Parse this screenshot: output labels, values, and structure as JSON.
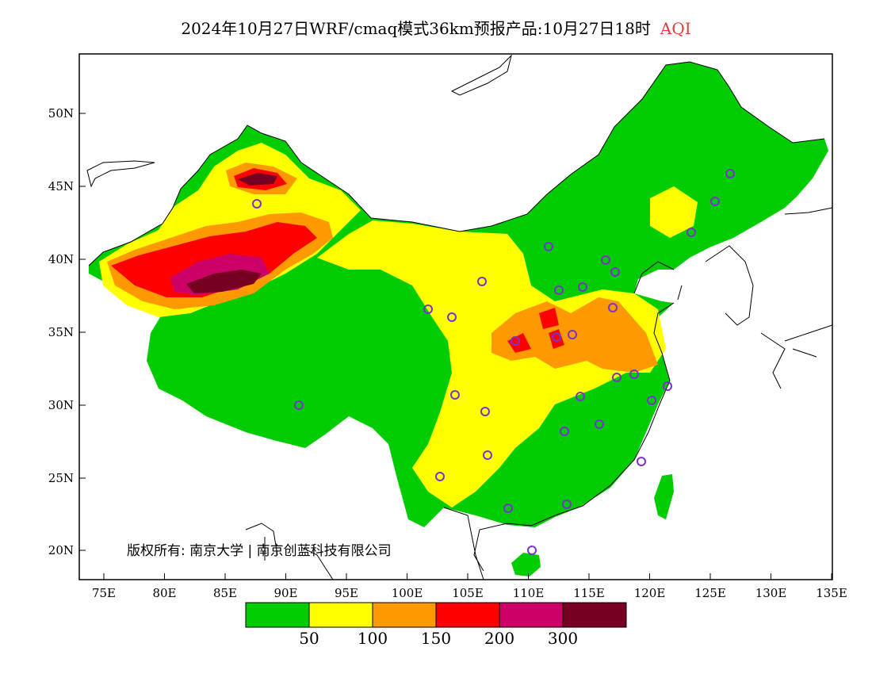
{
  "title": {
    "main": "2024年10月27日WRF/cmaq模式36km预报产品:10月27日18时",
    "variable": "AQI"
  },
  "axes": {
    "y_ticks": [
      "50N",
      "45N",
      "40N",
      "35N",
      "30N",
      "25N",
      "20N"
    ],
    "x_ticks": [
      "75E",
      "80E",
      "85E",
      "90E",
      "95E",
      "100E",
      "105E",
      "110E",
      "115E",
      "120E",
      "125E",
      "130E",
      "135E"
    ]
  },
  "colors": {
    "good": "#00cc00",
    "moderate": "#ffff00",
    "sensitive": "#ff9900",
    "unhealthy": "#ff0000",
    "very_unhealthy": "#cc0066",
    "hazardous": "#770022",
    "coast": "#000000",
    "station": "#7733cc"
  },
  "legend": {
    "labels": [
      "50",
      "100",
      "150",
      "200",
      "300"
    ]
  },
  "copyright": "版权所有: 南京大学 | 南京创蓝科技有限公司"
}
